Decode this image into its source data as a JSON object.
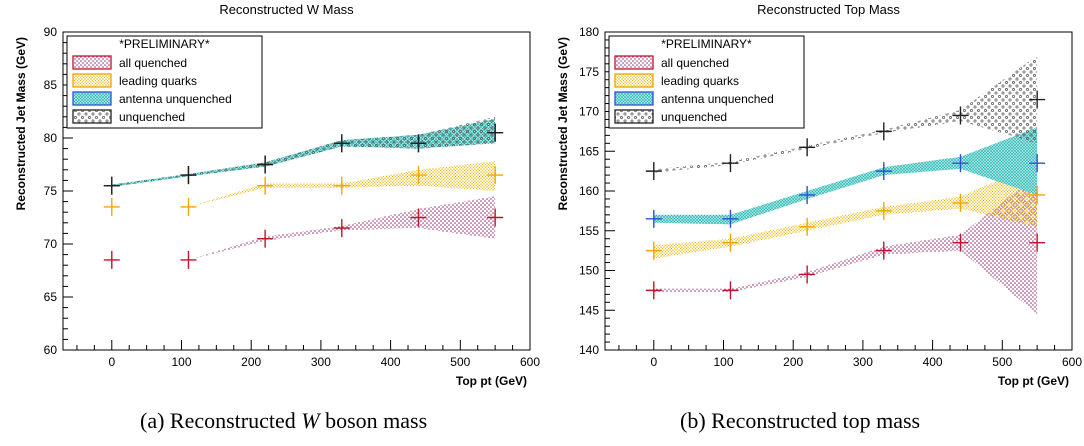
{
  "colors": {
    "all_quenched": "#c0142a",
    "leading_quarks": "#f5a400",
    "antenna_unquenched": "#2f4fd6",
    "unquenched": "#222222",
    "band_red": "#8a1a6b",
    "band_yellow": "#f0b400",
    "band_teal": "#27b3b0",
    "band_grey": "#666666"
  },
  "captions": [
    {
      "pre": "(a) Reconstructed ",
      "italic": "W",
      "post": " boson mass"
    },
    {
      "pre": "(b) Reconstructed top mass",
      "italic": "",
      "post": ""
    }
  ],
  "chart_data": [
    {
      "type": "line",
      "title": "Reconstructed W Mass",
      "xlabel": "Top pt (GeV)",
      "ylabel": "Reconstructed Jet Mass (GeV)",
      "xlim": [
        -70,
        600
      ],
      "ylim": [
        60,
        90
      ],
      "xticks": [
        0,
        100,
        200,
        300,
        400,
        500,
        600
      ],
      "yticks": [
        60,
        65,
        70,
        75,
        80,
        85,
        90
      ],
      "legend_placement": "top-left",
      "legend_header": "*PRELIMINARY*",
      "x": [
        0,
        110,
        220,
        330,
        440,
        550
      ],
      "series": [
        {
          "name": "all quenched",
          "color_key": "all_quenched",
          "band_key": "band_red",
          "values": [
            68.5,
            68.5,
            70.5,
            71.5,
            72.5,
            72.5
          ],
          "lo": [
            68.5,
            68.5,
            70.3,
            71.3,
            71.5,
            70.5
          ],
          "hi": [
            68.5,
            68.5,
            70.7,
            71.7,
            73.3,
            74.5
          ]
        },
        {
          "name": "leading quarks",
          "color_key": "leading_quarks",
          "band_key": "band_yellow",
          "values": [
            73.5,
            73.5,
            75.5,
            75.5,
            76.5,
            76.5
          ],
          "lo": [
            73.5,
            73.5,
            75.3,
            75.3,
            75.5,
            75.0
          ],
          "hi": [
            73.5,
            73.5,
            75.7,
            75.7,
            77.0,
            77.8
          ]
        },
        {
          "name": "antenna unquenched",
          "color_key": "antenna_unquenched",
          "band_key": "band_teal",
          "values": [
            75.5,
            76.5,
            77.5,
            79.5,
            79.5,
            80.5
          ],
          "lo": [
            75.4,
            76.4,
            77.3,
            79.2,
            79.0,
            79.5
          ],
          "hi": [
            75.6,
            76.6,
            77.7,
            79.8,
            80.3,
            81.8
          ]
        },
        {
          "name": "unquenched",
          "color_key": "unquenched",
          "band_key": "band_grey",
          "values": [
            75.5,
            76.5,
            77.5,
            79.5,
            79.5,
            80.5
          ],
          "lo": [
            75.4,
            76.4,
            77.3,
            79.2,
            79.0,
            79.5
          ],
          "hi": [
            75.6,
            76.6,
            77.7,
            79.8,
            80.3,
            82.0
          ]
        }
      ]
    },
    {
      "type": "line",
      "title": "Reconstructed Top Mass",
      "xlabel": "Top pt (GeV)",
      "ylabel": "Reconstructed Jet Mass (GeV)",
      "xlim": [
        -70,
        600
      ],
      "ylim": [
        140,
        180
      ],
      "xticks": [
        0,
        100,
        200,
        300,
        400,
        500,
        600
      ],
      "yticks": [
        140,
        145,
        150,
        155,
        160,
        165,
        170,
        175,
        180
      ],
      "legend_placement": "top-left",
      "legend_header": "*PRELIMINARY*",
      "x": [
        0,
        110,
        220,
        330,
        440,
        550
      ],
      "series": [
        {
          "name": "all quenched",
          "color_key": "all_quenched",
          "band_key": "band_red",
          "values": [
            147.5,
            147.5,
            149.5,
            152.5,
            153.5,
            153.5
          ],
          "lo": [
            147.3,
            147.3,
            149.2,
            152.0,
            152.5,
            144.5
          ],
          "hi": [
            147.7,
            147.7,
            149.8,
            153.0,
            154.5,
            162.0
          ]
        },
        {
          "name": "leading quarks",
          "color_key": "leading_quarks",
          "band_key": "band_yellow",
          "values": [
            152.5,
            153.5,
            155.5,
            157.5,
            158.5,
            159.5
          ],
          "lo": [
            151.5,
            153.0,
            155.0,
            157.0,
            157.8,
            155.5
          ],
          "hi": [
            153.2,
            154.0,
            156.0,
            158.0,
            159.3,
            163.5
          ]
        },
        {
          "name": "antenna unquenched",
          "color_key": "antenna_unquenched",
          "band_key": "band_teal",
          "values": [
            156.5,
            156.5,
            159.5,
            162.5,
            163.5,
            163.5
          ],
          "lo": [
            156.0,
            155.8,
            159.0,
            162.0,
            162.8,
            159.5
          ],
          "hi": [
            157.0,
            157.0,
            160.0,
            163.0,
            164.3,
            168.0
          ]
        },
        {
          "name": "unquenched",
          "color_key": "unquenched",
          "band_key": "band_grey",
          "values": [
            162.5,
            163.5,
            165.5,
            167.5,
            169.5,
            171.5
          ],
          "lo": [
            162.3,
            163.3,
            165.3,
            167.3,
            168.8,
            166.0
          ],
          "hi": [
            162.7,
            163.7,
            165.7,
            167.7,
            170.2,
            177.0
          ]
        }
      ]
    }
  ]
}
